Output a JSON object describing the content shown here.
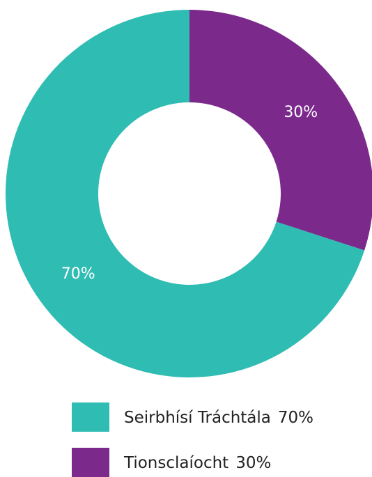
{
  "chart_data": {
    "type": "donut",
    "categories": [
      "Seirbhísí Tráchtála",
      "Tionsclaíocht"
    ],
    "values": [
      70,
      30
    ],
    "value_labels": [
      "70%",
      "30%"
    ],
    "colors": [
      "#2fbcb3",
      "#7b2a8c"
    ],
    "legend": "bottom"
  }
}
